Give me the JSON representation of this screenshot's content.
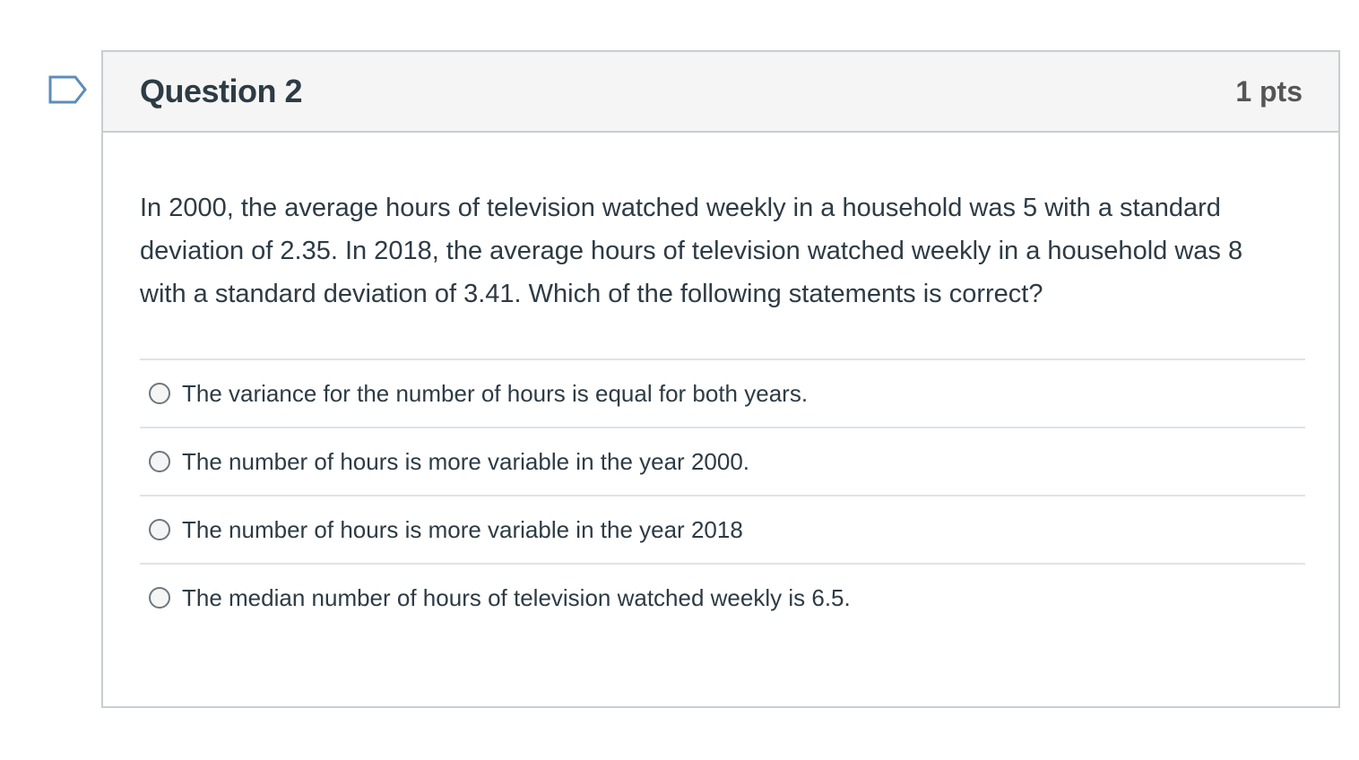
{
  "question": {
    "title": "Question 2",
    "points": "1 pts",
    "text": "In 2000, the average hours of television watched weekly in a household was 5 with a standard deviation of 2.35. In 2018, the average hours of television watched weekly in a household was 8 with a standard deviation of 3.41. Which of the following statements is correct?",
    "flag_icon": "flag-icon",
    "answers": [
      {
        "label": "The variance for the number of hours is equal for both years.",
        "selected": false
      },
      {
        "label": "The number of hours is more variable in the year 2000.",
        "selected": false
      },
      {
        "label": "The number of hours is more variable in the year 2018",
        "selected": false
      },
      {
        "label": "The median number of hours of television watched weekly is 6.5.",
        "selected": false
      }
    ]
  },
  "colors": {
    "border": "#c7cdd1",
    "header_bg": "#f5f5f5",
    "flag_accent": "#5b8db8",
    "text": "#2d3b45"
  }
}
